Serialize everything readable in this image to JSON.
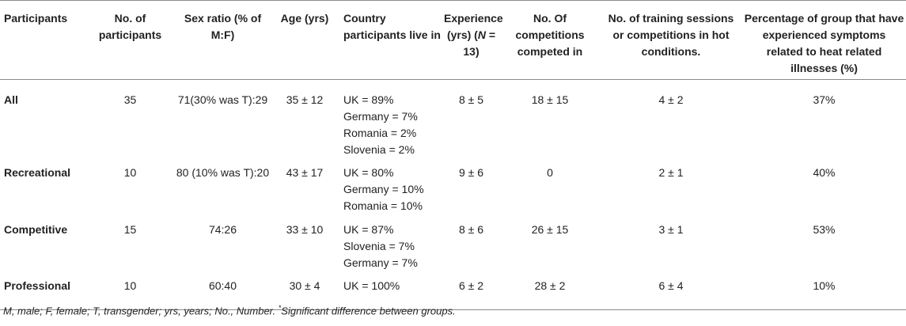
{
  "table": {
    "headers": [
      "Participants",
      "No. of participants",
      "Sex ratio (% of M:F)",
      "Age (yrs)",
      "Country participants live in",
      "Experience (yrs) (N = 13)",
      "No. Of competitions competed in",
      "No. of training sessions or competitions in hot conditions.",
      "Percentage of group that have experienced symptoms related to heat related illnesses (%)"
    ],
    "rows": [
      {
        "group": "All",
        "n": "35",
        "sex_ratio": "71(30% was T):29",
        "age": "35 ± 12",
        "countries": [
          "UK = 89%",
          "Germany = 7%",
          "Romania = 2%",
          "Slovenia = 2%"
        ],
        "experience": "8 ± 5",
        "competitions": "18 ± 15",
        "hot_sessions": "4 ± 2",
        "heat_illness_pct": "37%"
      },
      {
        "group": "Recreational",
        "n": "10",
        "sex_ratio": "80 (10% was T):20",
        "age": "43 ± 17",
        "countries": [
          "UK = 80%",
          "Germany = 10%",
          "Romania = 10%"
        ],
        "experience": "9 ± 6",
        "competitions": "0",
        "hot_sessions": "2 ± 1",
        "heat_illness_pct": "40%"
      },
      {
        "group": "Competitive",
        "n": "15",
        "sex_ratio": "74:26",
        "age": "33 ± 10",
        "countries": [
          "UK = 87%",
          "Slovenia = 7%",
          "Germany = 7%"
        ],
        "experience": "8 ± 6",
        "competitions": "26 ± 15",
        "hot_sessions": "3 ± 1",
        "heat_illness_pct": "53%"
      },
      {
        "group": "Professional",
        "n": "10",
        "sex_ratio": "60:40",
        "age": "30 ± 4",
        "countries": [
          "UK = 100%"
        ],
        "experience": "6 ± 2",
        "competitions": "28 ± 2",
        "hot_sessions": "6 ± 4",
        "heat_illness_pct": "10%"
      }
    ]
  },
  "footnote": {
    "text": "M, male; F, female; T, transgender; yrs, years; No., Number.",
    "marker": "*",
    "significance": "Significant difference between groups."
  }
}
